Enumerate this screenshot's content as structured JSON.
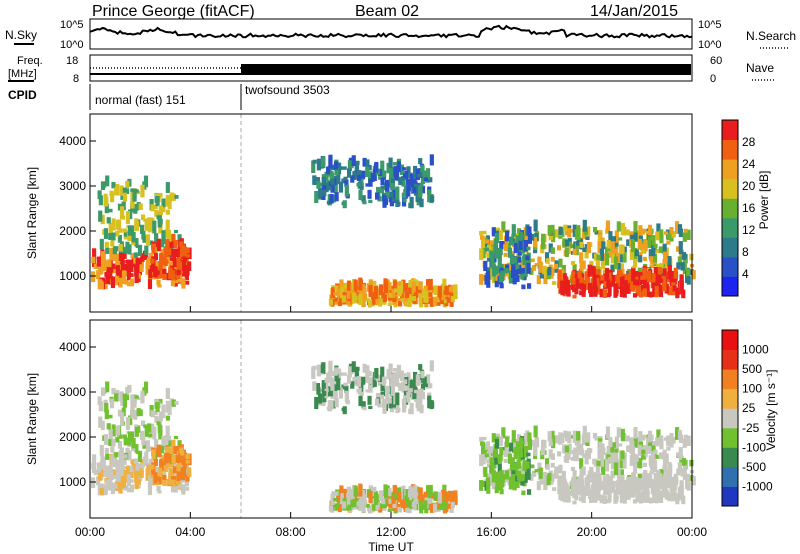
{
  "header": {
    "station": "Prince George (fitACF)",
    "beam": "Beam 02",
    "date": "14/Jan/2015"
  },
  "strip_noise": {
    "left_label": "N.Sky",
    "right_label": "N.Search",
    "left_ticks": [
      "10^5",
      "10^0"
    ],
    "right_ticks": [
      "10^5",
      "10^0"
    ]
  },
  "strip_freq": {
    "left_label_1": "Freq.",
    "left_label_2": "[MHz]",
    "left_ticks": [
      "18",
      "8"
    ],
    "right_ticks": [
      "60",
      "0"
    ],
    "right_label": "Nave"
  },
  "strip_cpid": {
    "label": "CPID",
    "modes": [
      {
        "name": "normal (fast) 151",
        "start_hour": 0,
        "end_hour": 6
      },
      {
        "name": "twofsound 3503",
        "start_hour": 6,
        "end_hour": 24
      }
    ]
  },
  "colors": {
    "power_scale": [
      "#1e24f0",
      "#2a50c8",
      "#2c7a8a",
      "#3a9a6a",
      "#6ab030",
      "#d8c020",
      "#f0a020",
      "#f06010",
      "#e81e1e"
    ],
    "velocity_scale": [
      "#2038c0",
      "#3070b0",
      "#3a8a50",
      "#70c030",
      "#c8c8c0",
      "#f0b040",
      "#f08020",
      "#e83018",
      "#e81010"
    ]
  },
  "chart_data": [
    {
      "type": "heatmap",
      "panel": "power",
      "xlabel": "",
      "ylabel": "Slant Range [km]",
      "xlim": [
        0,
        24
      ],
      "ylim": [
        200,
        4600
      ],
      "yticks": [
        "1000",
        "2000",
        "3000",
        "4000"
      ],
      "colorbar_label": "Power [dB]",
      "colorbar_ticks": [
        "28",
        "24",
        "20",
        "16",
        "12",
        "8",
        "4"
      ],
      "colorbar_range": [
        0,
        32
      ]
    },
    {
      "type": "heatmap",
      "panel": "velocity",
      "xlabel": "Time UT",
      "ylabel": "Slant Range [km]",
      "xlim": [
        0,
        24
      ],
      "ylim": [
        200,
        4600
      ],
      "xticks": [
        "00:00",
        "04:00",
        "08:00",
        "12:00",
        "16:00",
        "20:00",
        "00:00"
      ],
      "yticks": [
        "1000",
        "2000",
        "3000",
        "4000"
      ],
      "colorbar_label": "Velocity [m s⁻¹]",
      "colorbar_ticks": [
        "1000",
        "500",
        "100",
        "25",
        "-25",
        "-100",
        "-500",
        "-1000"
      ]
    }
  ]
}
